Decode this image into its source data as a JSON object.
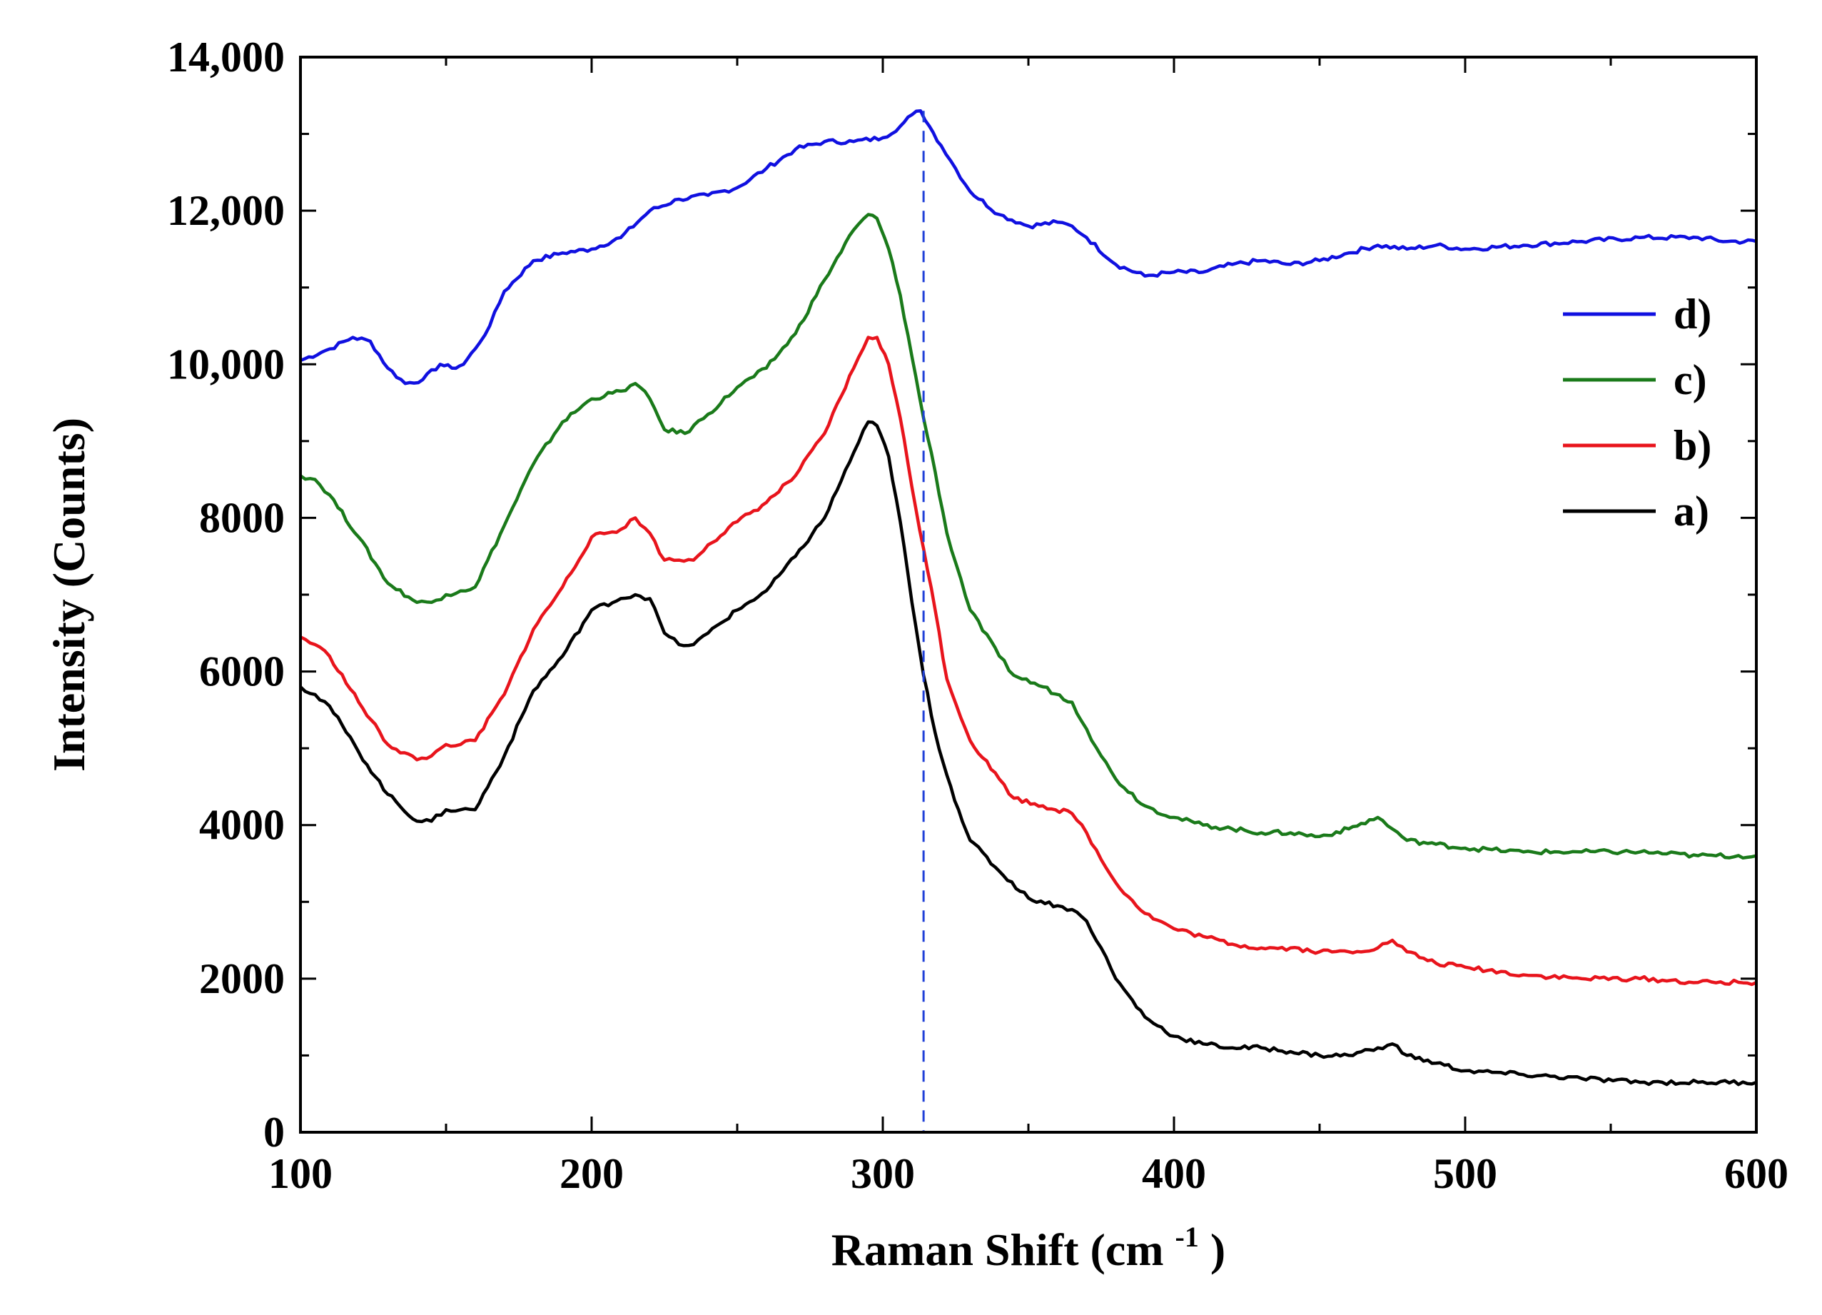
{
  "chart_data": {
    "type": "line",
    "title": "",
    "xlabel": "Raman Shift (cm",
    "xlabel_sup": "-1",
    "xlabel_close": ")",
    "ylabel": "Intensity (Counts)",
    "xlim": [
      100,
      600
    ],
    "ylim": [
      0,
      14000
    ],
    "x_ticks": [
      100,
      200,
      300,
      400,
      500,
      600
    ],
    "x_tick_labels": [
      "100",
      "200",
      "300",
      "400",
      "500",
      "600"
    ],
    "y_ticks": [
      0,
      2000,
      4000,
      6000,
      8000,
      10000,
      12000,
      14000
    ],
    "y_tick_labels": [
      "0",
      "2000",
      "4000",
      "6000",
      "8000",
      "10,000",
      "12,000",
      "14,000"
    ],
    "grid": false,
    "legend_position": "right",
    "reference_line": {
      "x": 314,
      "style": "dashed",
      "color": "#1f3fd8"
    },
    "series": [
      {
        "name": "d)",
        "color": "#1010e0",
        "x": [
          100,
          110,
          118,
          124,
          130,
          136,
          142,
          148,
          152,
          156,
          160,
          165,
          170,
          180,
          190,
          200,
          210,
          220,
          230,
          240,
          250,
          260,
          270,
          280,
          290,
          300,
          306,
          310,
          313,
          316,
          320,
          325,
          330,
          340,
          350,
          360,
          365,
          370,
          380,
          390,
          400,
          410,
          420,
          430,
          440,
          450,
          460,
          470,
          480,
          490,
          500,
          520,
          540,
          560,
          580,
          590,
          600
        ],
        "y": [
          10050,
          10200,
          10350,
          10300,
          9950,
          9750,
          9800,
          10000,
          9950,
          10000,
          10200,
          10500,
          10950,
          11350,
          11450,
          11500,
          11650,
          12000,
          12150,
          12200,
          12300,
          12550,
          12800,
          12900,
          12900,
          12950,
          13100,
          13250,
          13300,
          13100,
          12850,
          12550,
          12250,
          11950,
          11800,
          11850,
          11800,
          11650,
          11300,
          11150,
          11200,
          11200,
          11300,
          11350,
          11300,
          11350,
          11450,
          11550,
          11500,
          11550,
          11500,
          11550,
          11600,
          11650,
          11650,
          11600,
          11600
        ]
      },
      {
        "name": "c)",
        "color": "#1a7a1a",
        "x": [
          100,
          105,
          110,
          120,
          130,
          140,
          145,
          150,
          155,
          160,
          170,
          180,
          190,
          200,
          210,
          215,
          220,
          225,
          232,
          240,
          250,
          260,
          270,
          280,
          290,
          295,
          298,
          302,
          306,
          310,
          314,
          318,
          322,
          330,
          340,
          345,
          355,
          365,
          370,
          375,
          380,
          390,
          400,
          410,
          420,
          430,
          440,
          450,
          460,
          470,
          475,
          480,
          490,
          500,
          520,
          540,
          560,
          580,
          600
        ],
        "y": [
          8550,
          8500,
          8300,
          7750,
          7150,
          6900,
          6900,
          7000,
          7050,
          7100,
          7900,
          8700,
          9250,
          9550,
          9650,
          9750,
          9550,
          9150,
          9100,
          9350,
          9700,
          9950,
          10400,
          11100,
          11750,
          11950,
          11900,
          11500,
          10900,
          10100,
          9300,
          8600,
          7800,
          6800,
          6200,
          5950,
          5800,
          5600,
          5250,
          4900,
          4600,
          4250,
          4100,
          4000,
          3950,
          3900,
          3900,
          3850,
          3950,
          4100,
          3950,
          3800,
          3750,
          3700,
          3650,
          3650,
          3650,
          3600,
          3600
        ]
      },
      {
        "name": "b)",
        "color": "#e8141c",
        "x": [
          100,
          105,
          110,
          120,
          130,
          140,
          145,
          150,
          155,
          160,
          170,
          180,
          190,
          200,
          210,
          215,
          220,
          225,
          230,
          235,
          240,
          250,
          260,
          270,
          280,
          290,
          295,
          298,
          302,
          306,
          310,
          314,
          318,
          322,
          330,
          340,
          345,
          355,
          365,
          370,
          375,
          380,
          390,
          400,
          410,
          420,
          430,
          440,
          450,
          460,
          470,
          475,
          480,
          490,
          500,
          520,
          540,
          560,
          580,
          600
        ],
        "y": [
          6450,
          6350,
          6200,
          5600,
          5050,
          4850,
          4900,
          5050,
          5050,
          5100,
          5700,
          6550,
          7100,
          7750,
          7850,
          8000,
          7800,
          7450,
          7450,
          7450,
          7650,
          7950,
          8200,
          8550,
          9100,
          9950,
          10350,
          10350,
          10000,
          9300,
          8400,
          7600,
          6800,
          5900,
          5100,
          4600,
          4350,
          4250,
          4150,
          3900,
          3550,
          3250,
          2850,
          2650,
          2550,
          2450,
          2400,
          2400,
          2350,
          2350,
          2400,
          2500,
          2350,
          2200,
          2150,
          2050,
          2000,
          2000,
          1950,
          1950
        ]
      },
      {
        "name": "a)",
        "color": "#000000",
        "x": [
          100,
          105,
          110,
          120,
          130,
          140,
          145,
          150,
          155,
          160,
          170,
          180,
          190,
          200,
          210,
          215,
          220,
          225,
          230,
          235,
          240,
          250,
          260,
          270,
          280,
          290,
          295,
          298,
          302,
          306,
          310,
          314,
          318,
          322,
          326,
          330,
          340,
          350,
          360,
          365,
          370,
          375,
          380,
          390,
          400,
          410,
          420,
          430,
          440,
          450,
          460,
          470,
          475,
          480,
          490,
          500,
          520,
          540,
          560,
          580,
          600
        ],
        "y": [
          5800,
          5700,
          5550,
          4950,
          4400,
          4050,
          4050,
          4200,
          4200,
          4200,
          4900,
          5750,
          6200,
          6800,
          6950,
          7000,
          6950,
          6500,
          6350,
          6350,
          6500,
          6800,
          7050,
          7500,
          8000,
          8850,
          9250,
          9200,
          8800,
          7950,
          6900,
          5950,
          5200,
          4650,
          4200,
          3800,
          3400,
          3050,
          2950,
          2900,
          2750,
          2400,
          2000,
          1500,
          1250,
          1150,
          1100,
          1100,
          1050,
          1000,
          1000,
          1100,
          1150,
          1000,
          900,
          800,
          750,
          700,
          650,
          650,
          650
        ]
      }
    ]
  }
}
